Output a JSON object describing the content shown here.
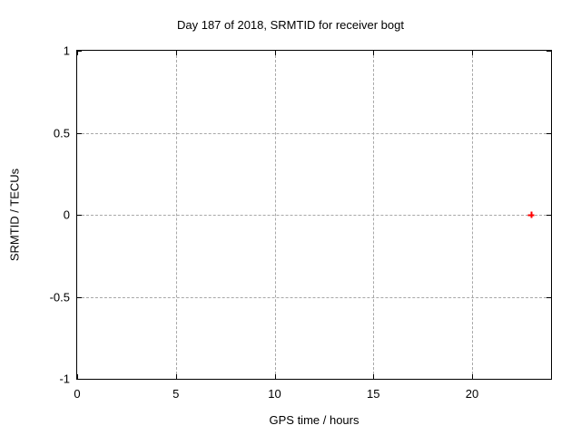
{
  "chart_data": {
    "type": "scatter",
    "title": "Day 187 of 2018, SRMTID for receiver bogt",
    "xlabel": "GPS time / hours",
    "ylabel": "SRMTID / TECUs",
    "xlim": [
      0,
      24
    ],
    "ylim": [
      -1,
      1
    ],
    "xticks": [
      0,
      5,
      10,
      15,
      20
    ],
    "xtick_labels": [
      "0",
      "5",
      "10",
      "15",
      "20"
    ],
    "yticks": [
      -1,
      -0.5,
      0,
      0.5,
      1
    ],
    "ytick_labels": [
      "-1",
      "-0.5",
      "0",
      "0.5",
      "1"
    ],
    "grid": true,
    "legend": "none",
    "series": [
      {
        "name": "SRMTID",
        "marker": "plus",
        "color": "#ff0000",
        "points": [
          [
            23.0,
            0.0
          ]
        ]
      }
    ],
    "colors": {
      "background": "#ffffff",
      "axis": "#000000",
      "text": "#000000",
      "grid": "#a8a8a8",
      "point": "#ff0000"
    }
  }
}
